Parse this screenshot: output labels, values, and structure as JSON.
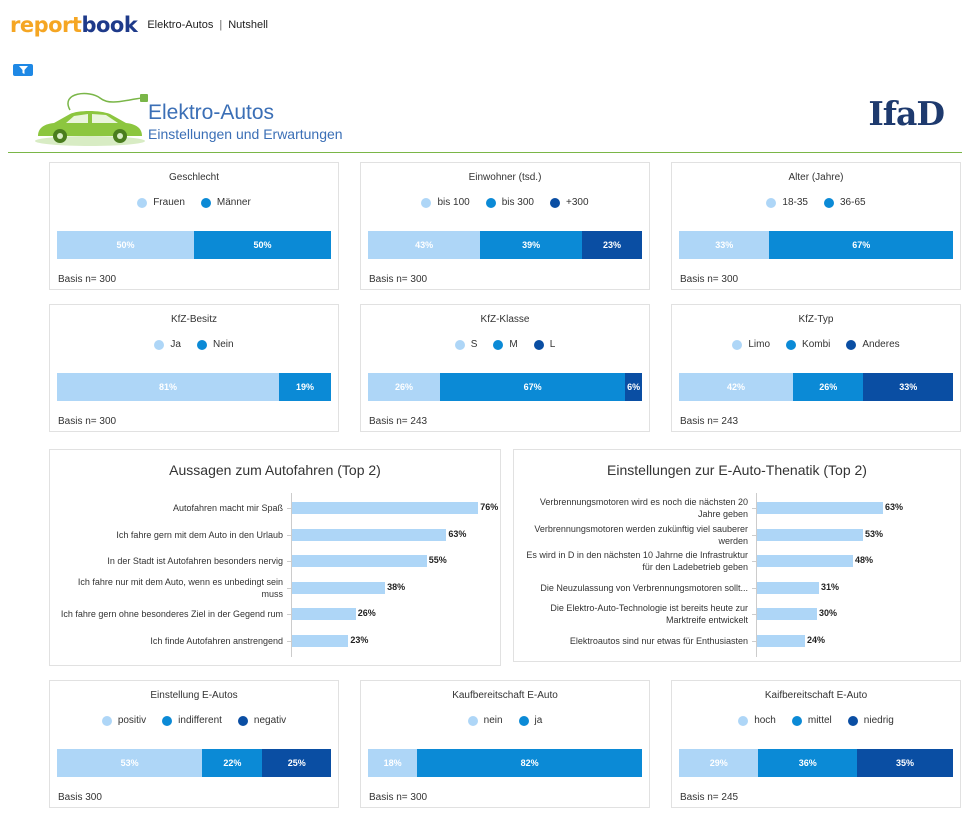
{
  "app": {
    "logo_part1": "report",
    "logo_part2": "book",
    "breadcrumb": [
      "Elektro-Autos",
      "Nutshell"
    ],
    "breadcrumb_sep": "|"
  },
  "header": {
    "title": "Elektro-Autos",
    "subtitle": "Einstellungen und Erwartungen",
    "logo": "IfaD"
  },
  "colors": {
    "light": "#aed6f7",
    "mid": "#0b8ad6",
    "dark": "#0a4ea3",
    "accent_green": "#7ab648"
  },
  "cards": [
    {
      "title": "Geschlecht",
      "legend": [
        "Frauen",
        "Männer"
      ],
      "values": [
        50,
        50
      ],
      "labels": [
        "50%",
        "50%"
      ],
      "basis": "Basis n= 300"
    },
    {
      "title": "Einwohner (tsd.)",
      "legend": [
        "bis 100",
        "bis 300",
        "+300"
      ],
      "values": [
        43,
        39,
        23
      ],
      "labels": [
        "43%",
        "39%",
        "23%"
      ],
      "basis": "Basis n= 300"
    },
    {
      "title": "Alter (Jahre)",
      "legend": [
        "18-35",
        "36-65"
      ],
      "values": [
        33,
        67
      ],
      "labels": [
        "33%",
        "67%"
      ],
      "basis": "Basis n= 300"
    },
    {
      "title": "KfZ-Besitz",
      "legend": [
        "Ja",
        "Nein"
      ],
      "values": [
        81,
        19
      ],
      "labels": [
        "81%",
        "19%"
      ],
      "basis": "Basis n= 300"
    },
    {
      "title": "KfZ-Klasse",
      "legend": [
        "S",
        "M",
        "L"
      ],
      "values": [
        26,
        67,
        6
      ],
      "labels": [
        "26%",
        "67%",
        "6%"
      ],
      "basis": "Basis n= 243"
    },
    {
      "title": "KfZ-Typ",
      "legend": [
        "Limo",
        "Kombi",
        "Anderes"
      ],
      "values": [
        42,
        26,
        33
      ],
      "labels": [
        "42%",
        "26%",
        "33%"
      ],
      "basis": "Basis n= 243"
    },
    {
      "title": "Einstellung E-Autos",
      "legend": [
        "positiv",
        "indifferent",
        "negativ"
      ],
      "values": [
        53,
        22,
        25
      ],
      "labels": [
        "53%",
        "22%",
        "25%"
      ],
      "basis": "Basis 300"
    },
    {
      "title": "Kaufbereitschaft E-Auto",
      "legend": [
        "nein",
        "ja"
      ],
      "values": [
        18,
        82
      ],
      "labels": [
        "18%",
        "82%"
      ],
      "basis": "Basis n= 300"
    },
    {
      "title": "Kaifbereitschaft E-Auto",
      "legend": [
        "hoch",
        "mittel",
        "niedrig"
      ],
      "values": [
        29,
        36,
        35
      ],
      "labels": [
        "29%",
        "36%",
        "35%"
      ],
      "basis": "Basis n= 245"
    }
  ],
  "chart_data": [
    {
      "type": "bar",
      "title": "Aussagen zum Autofahren (Top 2)",
      "categories": [
        "Autofahren macht mir Spaß",
        "Ich fahre gern mit dem Auto in den Urlaub",
        "In der Stadt ist Autofahren besonders nervig",
        "Ich fahre nur mit dem Auto, wenn es unbedingt sein muss",
        "Ich fahre gern ohne besonderes Ziel in der Gegend rum",
        "Ich finde Autofahren anstrengend"
      ],
      "values": [
        76,
        63,
        55,
        38,
        26,
        23
      ],
      "value_labels": [
        "76%",
        "63%",
        "55%",
        "38%",
        "26%",
        "23%"
      ]
    },
    {
      "type": "bar",
      "title": "Einstellungen zur E-Auto-Thenatik (Top 2)",
      "categories": [
        "Verbrennungsmotoren wird es noch die nächsten 20 Jahre geben",
        "Verbrennungsmotoren werden zukünftig viel sauberer werden",
        "Es wird in D in den nächsten 10 Jahrne die Infrastruktur für den Ladebetrieb geben",
        "Die Neuzulassung von Verbrennungsmotoren sollt...",
        "Die Elektro-Auto-Technologie ist bereits heute zur Marktreife entwickelt",
        "Elektroautos sind nur etwas für Enthusiasten"
      ],
      "values": [
        63,
        53,
        48,
        31,
        30,
        24
      ],
      "value_labels": [
        "63%",
        "53%",
        "48%",
        "31%",
        "30%",
        "24%"
      ]
    }
  ]
}
